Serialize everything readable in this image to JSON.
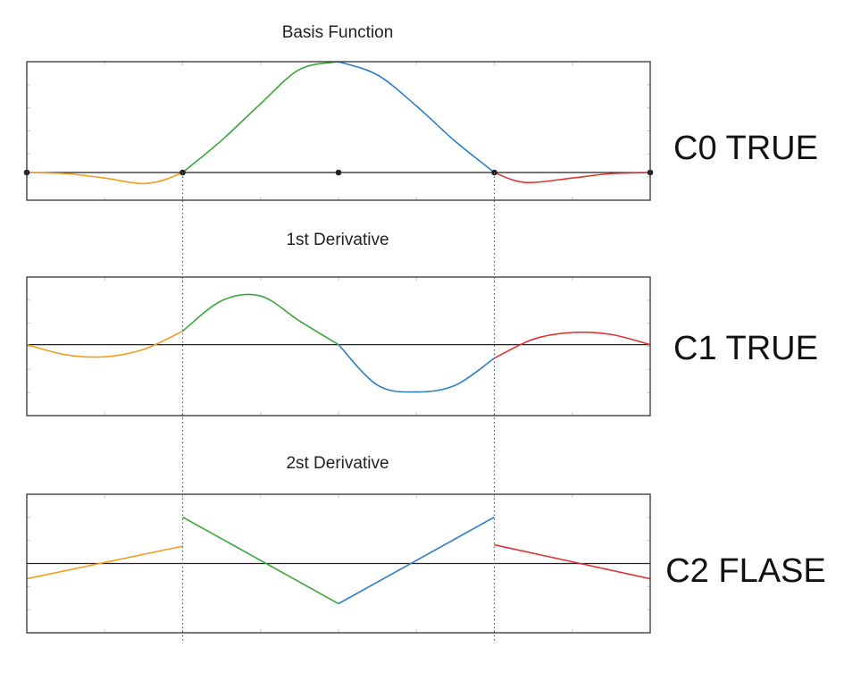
{
  "colors": {
    "segment_1": "#f39c1f",
    "segment_2": "#3aa63a",
    "segment_3": "#2f7fc8",
    "segment_4": "#dc3535",
    "axis": "#222222"
  },
  "chart_data": [
    {
      "type": "line",
      "title": "Basis Function",
      "side_label": "C0 TRUE",
      "xlim": [
        0,
        4
      ],
      "ylim": [
        -0.25,
        1.0
      ],
      "knots": [
        0,
        1,
        2,
        3,
        4
      ],
      "series": [
        {
          "x": [
            0,
            0.25,
            0.5,
            0.625,
            0.75,
            0.875,
            1.0
          ],
          "y": [
            0,
            -0.01,
            -0.05,
            -0.08,
            -0.1,
            -0.07,
            0
          ]
        },
        {
          "x": [
            1.0,
            1.25,
            1.5,
            1.75,
            2.0
          ],
          "y": [
            0,
            0.29,
            0.62,
            0.93,
            1.0
          ]
        },
        {
          "x": [
            2.0,
            2.25,
            2.5,
            2.75,
            3.0
          ],
          "y": [
            1.0,
            0.88,
            0.6,
            0.28,
            0
          ]
        },
        {
          "x": [
            3.0,
            3.125,
            3.25,
            3.5,
            3.75,
            4.0
          ],
          "y": [
            0,
            -0.07,
            -0.09,
            -0.05,
            -0.01,
            0
          ]
        }
      ]
    },
    {
      "type": "line",
      "title": "1st Derivative",
      "side_label": "C1 TRUE",
      "xlim": [
        0,
        4
      ],
      "ylim": [
        -1.05,
        1.0
      ],
      "knots": [
        0,
        1,
        2,
        3,
        4
      ],
      "series": [
        {
          "x": [
            0,
            0.25,
            0.5,
            0.75,
            1.0
          ],
          "y": [
            0,
            -0.15,
            -0.18,
            -0.07,
            0.2
          ]
        },
        {
          "x": [
            1.0,
            1.25,
            1.5,
            1.75,
            2.0
          ],
          "y": [
            0.2,
            0.65,
            0.72,
            0.35,
            0
          ]
        },
        {
          "x": [
            2.0,
            2.25,
            2.5,
            2.75,
            3.0
          ],
          "y": [
            0,
            -0.6,
            -0.7,
            -0.6,
            -0.2
          ]
        },
        {
          "x": [
            3.0,
            3.25,
            3.5,
            3.75,
            4.0
          ],
          "y": [
            -0.2,
            0.08,
            0.18,
            0.15,
            0
          ]
        }
      ]
    },
    {
      "type": "line",
      "title": "2st Derivative",
      "side_label": "C2 FLASE",
      "xlim": [
        0,
        4
      ],
      "ylim": [
        -1.0,
        1.0
      ],
      "knots": [
        0,
        1,
        2,
        3,
        4
      ],
      "series": [
        {
          "x": [
            0,
            1.0
          ],
          "y": [
            -0.22,
            0.25
          ]
        },
        {
          "x": [
            1.0,
            2.0
          ],
          "y": [
            0.67,
            -0.58
          ]
        },
        {
          "x": [
            2.0,
            3.0
          ],
          "y": [
            -0.58,
            0.67
          ]
        },
        {
          "x": [
            3.0,
            4.0
          ],
          "y": [
            0.27,
            -0.22
          ]
        }
      ]
    }
  ]
}
